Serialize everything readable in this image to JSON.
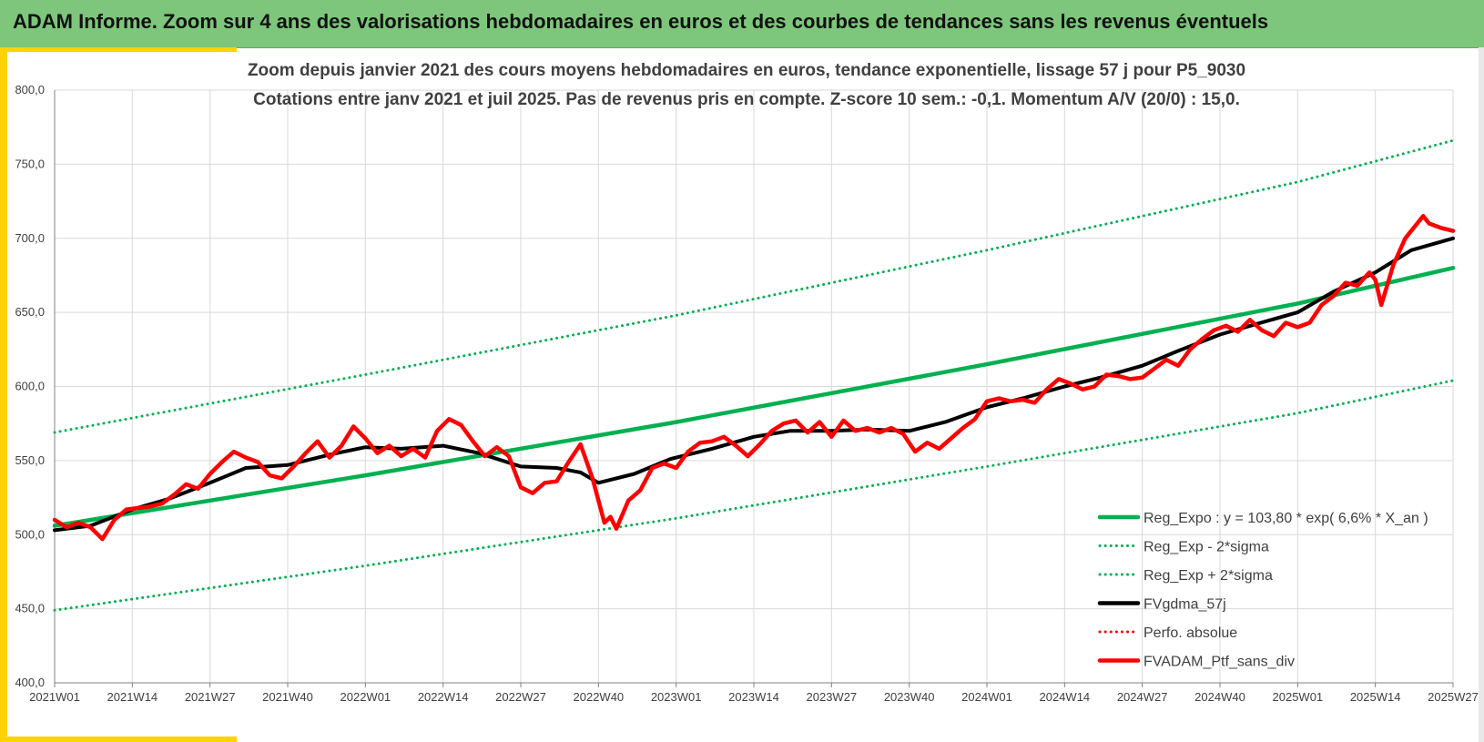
{
  "banner": {
    "title": "ADAM Informe. Zoom sur 4 ans des valorisations hebdomadaires en euros et des courbes de tendances sans les revenus éventuels"
  },
  "colors": {
    "banner_bg": "#7dc67b",
    "frame": "#ffd200",
    "trend": "#00b050",
    "smooth": "#000000",
    "series": "#ff0000"
  },
  "chart_data": {
    "type": "line",
    "title_line1": "Zoom depuis janvier 2021 des cours moyens hebdomadaires  en euros, tendance exponentielle, lissage 57 j pour P5_9030",
    "title_line2": "Cotations entre janv 2021 et juil 2025. Pas de revenus pris en compte. Z-score 10 sem.: -0,1. Momentum A/V (20/0) : 15,0.",
    "ylim": [
      400,
      800
    ],
    "y_ticks": [
      "400,0",
      "450,0",
      "500,0",
      "550,0",
      "600,0",
      "650,0",
      "700,0",
      "750,0",
      "800,0"
    ],
    "x_ticks": [
      "2021W01",
      "2021W14",
      "2021W27",
      "2021W40",
      "2022W01",
      "2022W14",
      "2022W27",
      "2022W40",
      "2023W01",
      "2023W14",
      "2023W27",
      "2023W40",
      "2024W01",
      "2024W14",
      "2024W27",
      "2024W40",
      "2025W01",
      "2025W14",
      "2025W27"
    ],
    "grid": true,
    "legend_position": "bottom-right",
    "series": [
      {
        "name": "Reg_Expo : y = 103,80 * exp( 6,6% *  X_an )",
        "style": "solid",
        "color": "#00b050",
        "points": [
          [
            "2021W01",
            506
          ],
          [
            "2022W01",
            540
          ],
          [
            "2023W01",
            576
          ],
          [
            "2024W01",
            615
          ],
          [
            "2025W01",
            656
          ],
          [
            "2025W27",
            680
          ]
        ]
      },
      {
        "name": "Reg_Exp - 2*sigma",
        "style": "dotted",
        "color": "#00b050",
        "points": [
          [
            "2021W01",
            449
          ],
          [
            "2022W01",
            479
          ],
          [
            "2023W01",
            511
          ],
          [
            "2024W01",
            546
          ],
          [
            "2025W01",
            582
          ],
          [
            "2025W27",
            604
          ]
        ]
      },
      {
        "name": "Reg_Exp + 2*sigma",
        "style": "dotted",
        "color": "#00b050",
        "points": [
          [
            "2021W01",
            569
          ],
          [
            "2022W01",
            608
          ],
          [
            "2023W01",
            648
          ],
          [
            "2024W01",
            692
          ],
          [
            "2025W01",
            738
          ],
          [
            "2025W27",
            766
          ]
        ]
      },
      {
        "name": "FVgdma_57j",
        "style": "solid",
        "color": "#000000",
        "points": [
          [
            "2021W01",
            503
          ],
          [
            "2021W07",
            506
          ],
          [
            "2021W14",
            517
          ],
          [
            "2021W20",
            524
          ],
          [
            "2021W27",
            535
          ],
          [
            "2021W33",
            545
          ],
          [
            "2021W40",
            547
          ],
          [
            "2021W47",
            554
          ],
          [
            "2022W01",
            559
          ],
          [
            "2022W07",
            558
          ],
          [
            "2022W14",
            560
          ],
          [
            "2022W20",
            555
          ],
          [
            "2022W27",
            546
          ],
          [
            "2022W33",
            545
          ],
          [
            "2022W37",
            542
          ],
          [
            "2022W40",
            535
          ],
          [
            "2022W46",
            541
          ],
          [
            "2022W52",
            551
          ],
          [
            "2023W07",
            558
          ],
          [
            "2023W14",
            566
          ],
          [
            "2023W20",
            570
          ],
          [
            "2023W27",
            570
          ],
          [
            "2023W33",
            571
          ],
          [
            "2023W40",
            570
          ],
          [
            "2023W46",
            576
          ],
          [
            "2024W01",
            586
          ],
          [
            "2024W07",
            592
          ],
          [
            "2024W14",
            600
          ],
          [
            "2024W20",
            606
          ],
          [
            "2024W27",
            614
          ],
          [
            "2024W33",
            624
          ],
          [
            "2024W40",
            635
          ],
          [
            "2024W46",
            642
          ],
          [
            "2025W01",
            650
          ],
          [
            "2025W07",
            664
          ],
          [
            "2025W14",
            677
          ],
          [
            "2025W20",
            692
          ],
          [
            "2025W27",
            700
          ]
        ]
      },
      {
        "name": "Perfo. absolue",
        "style": "dotted",
        "color": "#ff0000",
        "points": []
      },
      {
        "name": "FVADAM_Ptf_sans_div",
        "style": "solid",
        "color": "#ff0000",
        "points": [
          [
            "2021W01",
            510
          ],
          [
            "2021W03",
            505
          ],
          [
            "2021W05",
            508
          ],
          [
            "2021W07",
            505
          ],
          [
            "2021W09",
            497
          ],
          [
            "2021W11",
            510
          ],
          [
            "2021W13",
            517
          ],
          [
            "2021W15",
            518
          ],
          [
            "2021W17",
            519
          ],
          [
            "2021W19",
            521
          ],
          [
            "2021W21",
            527
          ],
          [
            "2021W23",
            534
          ],
          [
            "2021W25",
            531
          ],
          [
            "2021W27",
            541
          ],
          [
            "2021W29",
            549
          ],
          [
            "2021W31",
            556
          ],
          [
            "2021W33",
            552
          ],
          [
            "2021W35",
            549
          ],
          [
            "2021W37",
            540
          ],
          [
            "2021W39",
            538
          ],
          [
            "2021W41",
            546
          ],
          [
            "2021W43",
            555
          ],
          [
            "2021W45",
            563
          ],
          [
            "2021W47",
            552
          ],
          [
            "2021W49",
            560
          ],
          [
            "2021W51",
            573
          ],
          [
            "2022W01",
            565
          ],
          [
            "2022W03",
            555
          ],
          [
            "2022W05",
            560
          ],
          [
            "2022W07",
            553
          ],
          [
            "2022W09",
            558
          ],
          [
            "2022W11",
            552
          ],
          [
            "2022W13",
            570
          ],
          [
            "2022W15",
            578
          ],
          [
            "2022W17",
            574
          ],
          [
            "2022W19",
            563
          ],
          [
            "2022W21",
            553
          ],
          [
            "2022W23",
            559
          ],
          [
            "2022W25",
            553
          ],
          [
            "2022W27",
            532
          ],
          [
            "2022W29",
            528
          ],
          [
            "2022W31",
            535
          ],
          [
            "2022W33",
            536
          ],
          [
            "2022W35",
            549
          ],
          [
            "2022W37",
            561
          ],
          [
            "2022W39",
            538
          ],
          [
            "2022W41",
            508
          ],
          [
            "2022W42",
            512
          ],
          [
            "2022W43",
            504
          ],
          [
            "2022W45",
            523
          ],
          [
            "2022W47",
            530
          ],
          [
            "2022W49",
            545
          ],
          [
            "2022W51",
            548
          ],
          [
            "2023W01",
            545
          ],
          [
            "2023W03",
            556
          ],
          [
            "2023W05",
            562
          ],
          [
            "2023W07",
            563
          ],
          [
            "2023W09",
            566
          ],
          [
            "2023W11",
            560
          ],
          [
            "2023W13",
            553
          ],
          [
            "2023W15",
            561
          ],
          [
            "2023W17",
            570
          ],
          [
            "2023W19",
            575
          ],
          [
            "2023W21",
            577
          ],
          [
            "2023W23",
            569
          ],
          [
            "2023W25",
            576
          ],
          [
            "2023W27",
            566
          ],
          [
            "2023W29",
            577
          ],
          [
            "2023W31",
            570
          ],
          [
            "2023W33",
            572
          ],
          [
            "2023W35",
            569
          ],
          [
            "2023W37",
            572
          ],
          [
            "2023W39",
            568
          ],
          [
            "2023W41",
            556
          ],
          [
            "2023W43",
            562
          ],
          [
            "2023W45",
            558
          ],
          [
            "2023W47",
            565
          ],
          [
            "2023W49",
            572
          ],
          [
            "2023W51",
            578
          ],
          [
            "2024W01",
            590
          ],
          [
            "2024W03",
            592
          ],
          [
            "2024W05",
            590
          ],
          [
            "2024W07",
            591
          ],
          [
            "2024W09",
            589
          ],
          [
            "2024W11",
            598
          ],
          [
            "2024W13",
            605
          ],
          [
            "2024W15",
            602
          ],
          [
            "2024W17",
            598
          ],
          [
            "2024W19",
            600
          ],
          [
            "2024W21",
            608
          ],
          [
            "2024W23",
            607
          ],
          [
            "2024W25",
            605
          ],
          [
            "2024W27",
            606
          ],
          [
            "2024W29",
            612
          ],
          [
            "2024W31",
            618
          ],
          [
            "2024W33",
            614
          ],
          [
            "2024W35",
            625
          ],
          [
            "2024W37",
            632
          ],
          [
            "2024W39",
            638
          ],
          [
            "2024W41",
            641
          ],
          [
            "2024W43",
            637
          ],
          [
            "2024W45",
            645
          ],
          [
            "2024W47",
            638
          ],
          [
            "2024W49",
            634
          ],
          [
            "2024W51",
            643
          ],
          [
            "2025W01",
            640
          ],
          [
            "2025W03",
            643
          ],
          [
            "2025W05",
            655
          ],
          [
            "2025W07",
            661
          ],
          [
            "2025W09",
            670
          ],
          [
            "2025W11",
            668
          ],
          [
            "2025W13",
            677
          ],
          [
            "2025W14",
            672
          ],
          [
            "2025W15",
            655
          ],
          [
            "2025W17",
            682
          ],
          [
            "2025W19",
            700
          ],
          [
            "2025W21",
            710
          ],
          [
            "2025W22",
            715
          ],
          [
            "2025W23",
            710
          ],
          [
            "2025W25",
            707
          ],
          [
            "2025W27",
            705
          ]
        ]
      }
    ]
  }
}
